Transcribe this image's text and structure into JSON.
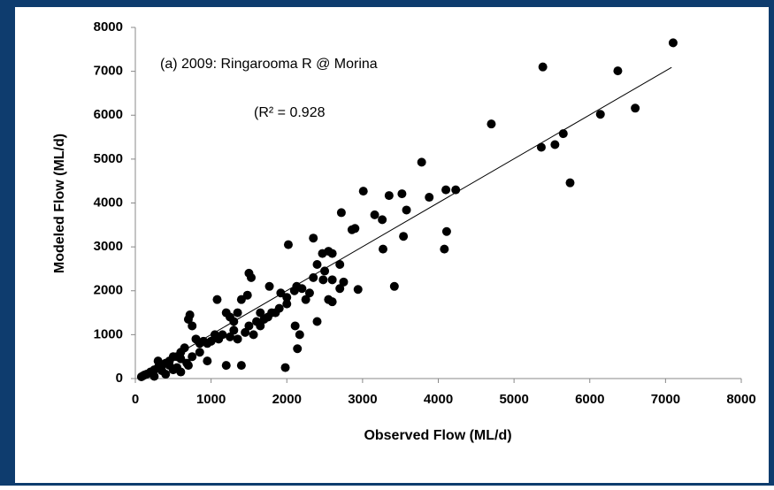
{
  "chart_data": {
    "type": "scatter",
    "annotation": "(a) 2009: Ringarooma R @ Morina",
    "r2_label": "(R² = 0.928",
    "xlabel": "Observed Flow (ML/d)",
    "ylabel": "Modeled Flow (ML/d)",
    "color": "#000000",
    "xlim": [
      0,
      8000
    ],
    "ylim": [
      0,
      8000
    ],
    "xticks": [
      0,
      1000,
      2000,
      3000,
      4000,
      5000,
      6000,
      7000,
      8000
    ],
    "yticks": [
      0,
      1000,
      2000,
      3000,
      4000,
      5000,
      6000,
      7000,
      8000
    ],
    "x": [
      7100,
      6370,
      5380,
      4700,
      3780,
      6140,
      6600,
      5650,
      5540,
      5360,
      5740,
      4230,
      4100,
      3880,
      3520,
      3350,
      3010,
      3160,
      3260,
      3580,
      3540,
      3270,
      2720,
      2860,
      2900,
      2350,
      2020,
      4080,
      4110,
      3420,
      2940,
      2700,
      2700,
      2600,
      2470,
      2550,
      2400,
      2480,
      2300,
      2200,
      2250,
      2130,
      2170,
      2140,
      1980,
      2110,
      2000,
      1920,
      1770,
      1850,
      1750,
      1650,
      1600,
      1500,
      1530,
      1480,
      1400,
      1350,
      1300,
      1250,
      1200,
      1080,
      1200,
      1400,
      950,
      1050,
      900,
      850,
      800,
      750,
      720,
      700,
      650,
      600,
      550,
      500,
      450,
      400,
      350,
      300,
      250,
      200,
      150,
      120,
      100,
      80,
      600,
      500,
      700,
      300,
      400,
      250,
      1100,
      1000,
      950,
      1150,
      1300,
      1500,
      1700,
      1800,
      1900,
      2000,
      2100,
      2600,
      2750,
      2350,
      2550,
      2600,
      2400,
      2500,
      1650,
      1560,
      1450,
      1350,
      1250,
      680,
      750,
      850,
      550,
      350,
      450,
      600
    ],
    "values": [
      7650,
      7010,
      7100,
      5800,
      4930,
      6020,
      6160,
      5580,
      5330,
      5270,
      4460,
      4300,
      4300,
      4130,
      4210,
      4170,
      4270,
      3730,
      3620,
      3840,
      3240,
      2950,
      3780,
      3390,
      3420,
      3200,
      3050,
      2950,
      3350,
      2100,
      2030,
      2050,
      2600,
      2850,
      2850,
      2900,
      2600,
      2250,
      1950,
      2050,
      1800,
      2100,
      1000,
      680,
      250,
      1200,
      1700,
      1950,
      2100,
      1500,
      1400,
      1500,
      1300,
      2400,
      2300,
      1900,
      1800,
      1500,
      1300,
      1400,
      1500,
      1800,
      300,
      300,
      400,
      1000,
      850,
      800,
      900,
      1200,
      1450,
      1350,
      700,
      600,
      500,
      500,
      400,
      350,
      300,
      250,
      200,
      150,
      100,
      80,
      60,
      40,
      150,
      200,
      300,
      400,
      100,
      50,
      900,
      850,
      800,
      1000,
      1100,
      1200,
      1350,
      1500,
      1600,
      1850,
      2000,
      2250,
      2200,
      2300,
      1800,
      1750,
      1300,
      2450,
      1200,
      1000,
      1050,
      900,
      950,
      350,
      500,
      600,
      250,
      180,
      300,
      450
    ],
    "trendline": {
      "x": [
        60,
        7080
      ],
      "values": [
        60,
        7090
      ]
    }
  }
}
